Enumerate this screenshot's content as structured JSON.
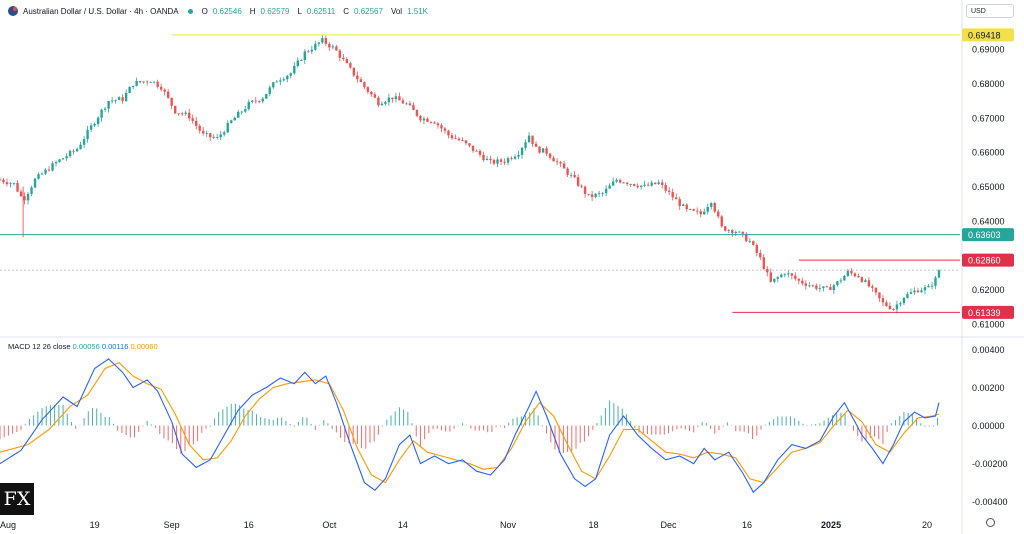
{
  "header": {
    "title": "Australian Dollar / U.S. Dollar · 4h · OANDA",
    "open_label": "O",
    "open": "0.62546",
    "high_label": "H",
    "high": "0.62579",
    "low_label": "L",
    "low": "0.62511",
    "close_label": "C",
    "close": "0.62567",
    "vol_label": "Vol",
    "vol": "1.51K",
    "currency": "USD"
  },
  "macd_header": {
    "label": "MACD 12 26 close",
    "histogram": "0.00056",
    "macd": "0.00116",
    "signal": "0.00060"
  },
  "brand": "FX",
  "colors": {
    "up": "#26a69a",
    "down": "#ef5350",
    "yellow_line": "#f2e04a",
    "green_line": "#26a69a",
    "red_line": "#e0314b",
    "macd_line": "#2962ff",
    "signal_line": "#ff9800"
  },
  "chart_data": [
    {
      "type": "candlestick",
      "title": "Australian Dollar / U.S. Dollar · 4h · OANDA",
      "ylim": [
        0.6065,
        0.6985
      ],
      "y_ticks": [
        "0.69000",
        "0.68000",
        "0.67000",
        "0.66000",
        "0.65000",
        "0.64000",
        "0.62000",
        "0.61000"
      ],
      "x_ticks": [
        "Aug",
        "19",
        "Sep",
        "16",
        "Oct",
        "14",
        "Nov",
        "18",
        "Dec",
        "16",
        "2025",
        "20"
      ],
      "x_tick_pos": [
        0,
        13.5,
        24.5,
        35.5,
        47,
        57.5,
        72.5,
        84.7,
        95.4,
        106.6,
        118.6,
        132.3
      ],
      "x_range": [
        0,
        137
      ],
      "path": [
        [
          0,
          0.652
        ],
        [
          2,
          0.6508
        ],
        [
          3.3,
          0.646
        ],
        [
          5,
          0.652
        ],
        [
          8,
          0.657
        ],
        [
          11,
          0.661
        ],
        [
          13.5,
          0.669
        ],
        [
          15.5,
          0.675
        ],
        [
          17.5,
          0.6755
        ],
        [
          19,
          0.68
        ],
        [
          21.5,
          0.681
        ],
        [
          23,
          0.679
        ],
        [
          25,
          0.672
        ],
        [
          27,
          0.6705
        ],
        [
          29,
          0.665
        ],
        [
          31,
          0.664
        ],
        [
          33,
          0.669
        ],
        [
          35.5,
          0.674
        ],
        [
          37.5,
          0.676
        ],
        [
          39.5,
          0.681
        ],
        [
          41.5,
          0.683
        ],
        [
          43.5,
          0.689
        ],
        [
          46,
          0.6925
        ],
        [
          47.8,
          0.69
        ],
        [
          50,
          0.684
        ],
        [
          52,
          0.679
        ],
        [
          54,
          0.6745
        ],
        [
          56,
          0.676
        ],
        [
          58,
          0.674
        ],
        [
          60,
          0.67
        ],
        [
          62,
          0.669
        ],
        [
          64,
          0.665
        ],
        [
          66,
          0.663
        ],
        [
          68,
          0.66
        ],
        [
          70,
          0.657
        ],
        [
          72,
          0.6575
        ],
        [
          74,
          0.66
        ],
        [
          75.5,
          0.665
        ],
        [
          76.5,
          0.661
        ],
        [
          78,
          0.66
        ],
        [
          80,
          0.656
        ],
        [
          82,
          0.652
        ],
        [
          84,
          0.647
        ],
        [
          86,
          0.648
        ],
        [
          88,
          0.652
        ],
        [
          90,
          0.651
        ],
        [
          92,
          0.65
        ],
        [
          94,
          0.651
        ],
        [
          96,
          0.647
        ],
        [
          98,
          0.643
        ],
        [
          100,
          0.642
        ],
        [
          101.5,
          0.646
        ],
        [
          103,
          0.638
        ],
        [
          105,
          0.637
        ],
        [
          107,
          0.634
        ],
        [
          108.5,
          0.629
        ],
        [
          110,
          0.622
        ],
        [
          112,
          0.625
        ],
        [
          114,
          0.6225
        ],
        [
          116,
          0.621
        ],
        [
          118,
          0.62
        ],
        [
          119.5,
          0.622
        ],
        [
          121,
          0.625
        ],
        [
          122.5,
          0.624
        ],
        [
          124,
          0.621
        ],
        [
          126,
          0.616
        ],
        [
          127.5,
          0.6145
        ],
        [
          129,
          0.618
        ],
        [
          131,
          0.62
        ],
        [
          132.5,
          0.6205
        ],
        [
          133.5,
          0.623
        ],
        [
          134,
          0.6257
        ]
      ],
      "hlines": [
        {
          "price": 0.69418,
          "label": "0.69418",
          "from": 24.5,
          "color": "#f2e04a"
        },
        {
          "price": 0.63603,
          "label": "0.63603",
          "from": 0,
          "color": "#26a69a"
        },
        {
          "price": 0.6286,
          "label": "0.62860",
          "from": 114,
          "color": "#e0314b"
        },
        {
          "price": 0.61339,
          "label": "0.61339",
          "from": 104.5,
          "color": "#e0314b"
        }
      ],
      "current_price": 0.62567
    },
    {
      "type": "line",
      "title": "MACD 12 26 close",
      "ylim": [
        -0.0047,
        0.0046
      ],
      "y_ticks": [
        "0.00400",
        "0.00200",
        "0.00000",
        "-0.00200",
        "-0.00400"
      ],
      "series": [
        {
          "name": "MACD",
          "values": [
            [
              0,
              -0.002
            ],
            [
              3,
              -0.0013
            ],
            [
              6,
              0.0003
            ],
            [
              9,
              0.0015
            ],
            [
              11,
              0.001
            ],
            [
              13.5,
              0.003
            ],
            [
              15.5,
              0.0035
            ],
            [
              17.5,
              0.0028
            ],
            [
              19,
              0.002
            ],
            [
              21,
              0.0024
            ],
            [
              22.5,
              0.0018
            ],
            [
              24.5,
              0.0002
            ],
            [
              26,
              -0.0015
            ],
            [
              28,
              -0.0022
            ],
            [
              30,
              -0.0018
            ],
            [
              32,
              -0.0005
            ],
            [
              34,
              0.0008
            ],
            [
              36,
              0.0016
            ],
            [
              38,
              0.002
            ],
            [
              40,
              0.0025
            ],
            [
              42,
              0.0022
            ],
            [
              43.5,
              0.0028
            ],
            [
              45,
              0.0022
            ],
            [
              46.5,
              0.0026
            ],
            [
              48,
              0.0012
            ],
            [
              50,
              -0.001
            ],
            [
              52,
              -0.003
            ],
            [
              53.5,
              -0.0034
            ],
            [
              55,
              -0.0028
            ],
            [
              57,
              -0.001
            ],
            [
              58.5,
              -0.0005
            ],
            [
              60,
              -0.002
            ],
            [
              62,
              -0.0016
            ],
            [
              64,
              -0.002
            ],
            [
              66,
              -0.0018
            ],
            [
              68,
              -0.0024
            ],
            [
              70,
              -0.0026
            ],
            [
              72,
              -0.0018
            ],
            [
              73.5,
              -0.0005
            ],
            [
              75.5,
              0.001
            ],
            [
              76.5,
              0.0018
            ],
            [
              78,
              0.0005
            ],
            [
              80,
              -0.0015
            ],
            [
              82,
              -0.0028
            ],
            [
              83.5,
              -0.0032
            ],
            [
              85,
              -0.0028
            ],
            [
              87,
              -0.0005
            ],
            [
              89,
              0.0005
            ],
            [
              91,
              -0.0005
            ],
            [
              93,
              -0.0012
            ],
            [
              95,
              -0.0018
            ],
            [
              97,
              -0.0016
            ],
            [
              99,
              -0.002
            ],
            [
              100.5,
              -0.0012
            ],
            [
              102,
              -0.0018
            ],
            [
              104,
              -0.0014
            ],
            [
              106,
              -0.0025
            ],
            [
              107.5,
              -0.0035
            ],
            [
              109,
              -0.003
            ],
            [
              111,
              -0.0018
            ],
            [
              113,
              -0.001
            ],
            [
              115,
              -0.0012
            ],
            [
              117,
              -0.0008
            ],
            [
              119,
              0.0005
            ],
            [
              120.5,
              0.0012
            ],
            [
              122,
              0.0002
            ],
            [
              123,
              -0.0005
            ],
            [
              124.5,
              -0.0012
            ],
            [
              126,
              -0.002
            ],
            [
              127.5,
              -0.001
            ],
            [
              129,
              0.0002
            ],
            [
              130.5,
              0.0007
            ],
            [
              132,
              0.0004
            ],
            [
              133.5,
              0.0005
            ],
            [
              134,
              0.0012
            ]
          ]
        },
        {
          "name": "Signal",
          "values": [
            [
              0,
              -0.0014
            ],
            [
              4,
              -0.001
            ],
            [
              7,
              -0.0002
            ],
            [
              10,
              0.001
            ],
            [
              12.5,
              0.0016
            ],
            [
              15,
              0.003
            ],
            [
              17,
              0.0033
            ],
            [
              19,
              0.0026
            ],
            [
              21,
              0.0022
            ],
            [
              23,
              0.0019
            ],
            [
              25,
              0.0006
            ],
            [
              27,
              -0.001
            ],
            [
              29,
              -0.0018
            ],
            [
              31,
              -0.0017
            ],
            [
              33,
              -0.0008
            ],
            [
              35,
              0.0005
            ],
            [
              37,
              0.0014
            ],
            [
              39,
              0.002
            ],
            [
              41,
              0.0022
            ],
            [
              43,
              0.0023
            ],
            [
              45,
              0.0024
            ],
            [
              47,
              0.0022
            ],
            [
              49,
              0.0008
            ],
            [
              51,
              -0.0012
            ],
            [
              53,
              -0.0026
            ],
            [
              55,
              -0.003
            ],
            [
              57,
              -0.0018
            ],
            [
              59,
              -0.0008
            ],
            [
              61,
              -0.0014
            ],
            [
              63,
              -0.0016
            ],
            [
              65,
              -0.0018
            ],
            [
              67,
              -0.002
            ],
            [
              69,
              -0.0023
            ],
            [
              71,
              -0.0022
            ],
            [
              73,
              -0.0012
            ],
            [
              75,
              0.0002
            ],
            [
              77,
              0.0012
            ],
            [
              79,
              0.0005
            ],
            [
              81,
              -0.001
            ],
            [
              83,
              -0.0024
            ],
            [
              85,
              -0.0028
            ],
            [
              87,
              -0.0016
            ],
            [
              89,
              -0.0002
            ],
            [
              91,
              -0.0002
            ],
            [
              93,
              -0.0008
            ],
            [
              95,
              -0.0014
            ],
            [
              97,
              -0.0015
            ],
            [
              99,
              -0.0017
            ],
            [
              101,
              -0.0014
            ],
            [
              103,
              -0.0015
            ],
            [
              105,
              -0.0017
            ],
            [
              107,
              -0.0028
            ],
            [
              109,
              -0.003
            ],
            [
              111,
              -0.0022
            ],
            [
              113,
              -0.0014
            ],
            [
              115,
              -0.0012
            ],
            [
              117,
              -0.0009
            ],
            [
              119,
              0.0
            ],
            [
              121,
              0.0008
            ],
            [
              123,
              0.0002
            ],
            [
              125,
              -0.001
            ],
            [
              127,
              -0.0014
            ],
            [
              129,
              -0.0004
            ],
            [
              131,
              0.0004
            ],
            [
              133,
              0.0005
            ],
            [
              134,
              0.0006
            ]
          ]
        }
      ]
    }
  ]
}
